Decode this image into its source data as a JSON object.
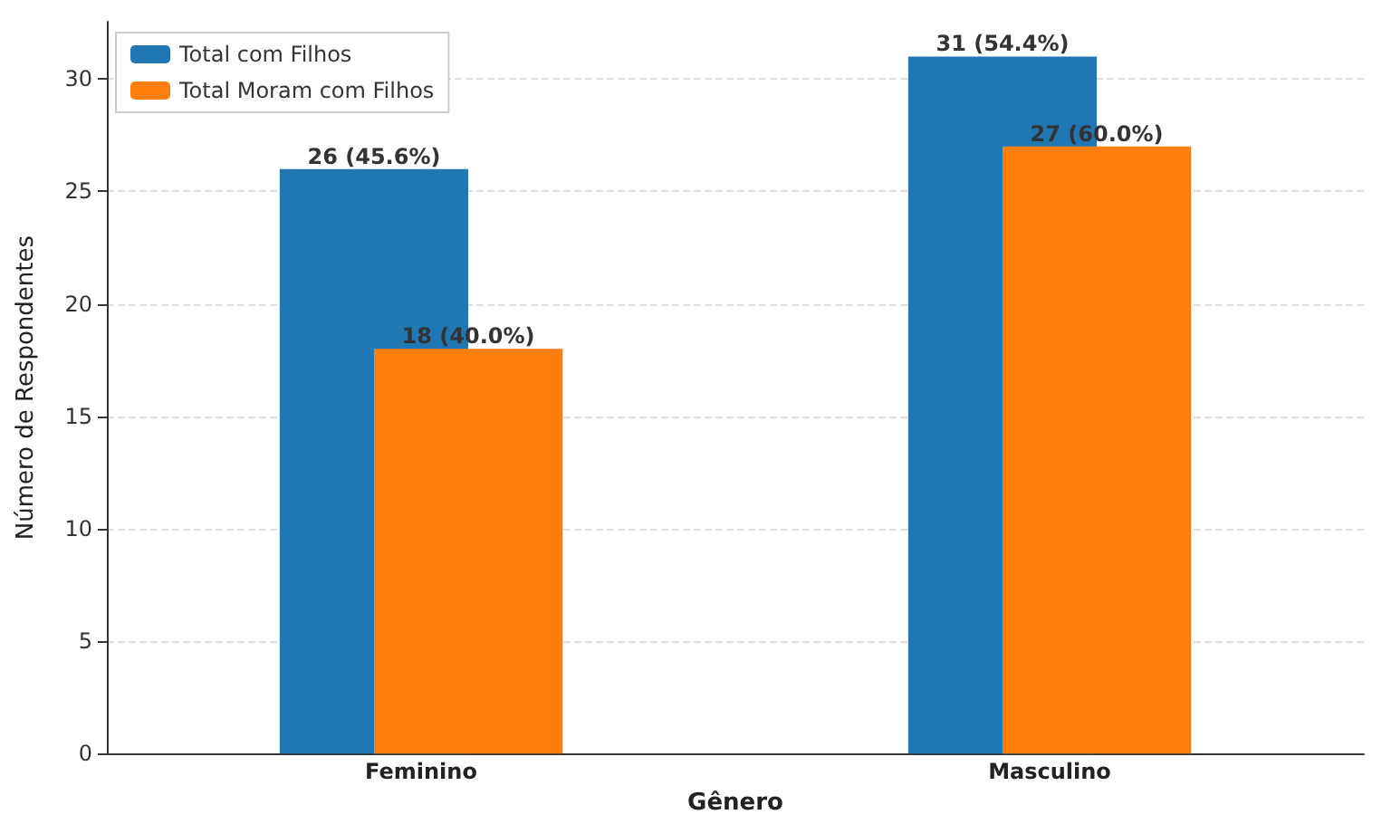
{
  "chart_data": {
    "type": "bar",
    "xlabel": "Gênero",
    "ylabel": "Número de Respondentes",
    "categories": [
      "Feminino",
      "Masculino"
    ],
    "series": [
      {
        "name": "Total com Filhos",
        "color": "#1f77b4",
        "values": [
          26,
          31
        ],
        "value_labels": [
          "26 (45.6%)",
          "31 (54.4%)"
        ]
      },
      {
        "name": "Total Moram com Filhos",
        "color": "#ff7f0e",
        "values": [
          18,
          27
        ],
        "value_labels": [
          "18 (40.0%)",
          "27 (60.0%)"
        ]
      }
    ],
    "ylim": [
      0,
      32.55
    ],
    "yticks": [
      0,
      5,
      10,
      15,
      20,
      25,
      30
    ],
    "grid": "y",
    "legend": "top left"
  }
}
